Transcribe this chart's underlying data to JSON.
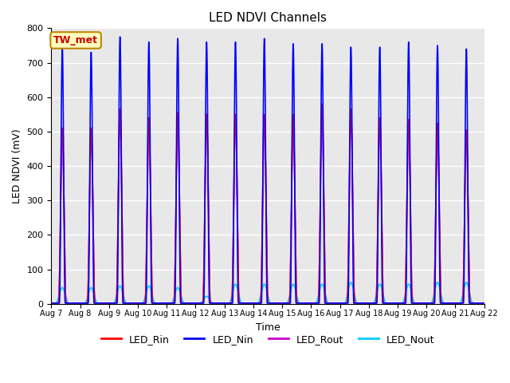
{
  "title": "LED NDVI Channels",
  "xlabel": "Time",
  "ylabel": "LED NDVI (mV)",
  "annotation": "TW_met",
  "ylim": [
    0,
    800
  ],
  "background_color": "#e8e8e8",
  "grid_color": "white",
  "series": {
    "LED_Rin": {
      "color": "#ff0000",
      "linewidth": 1.2
    },
    "LED_Nin": {
      "color": "#0000ff",
      "linewidth": 1.2
    },
    "LED_Rout": {
      "color": "#cc00cc",
      "linewidth": 1.2
    },
    "LED_Nout": {
      "color": "#00ccff",
      "linewidth": 1.2
    }
  },
  "num_cycles": 15,
  "cycle_period": 1.0,
  "baseline": 2,
  "nin_peaks": [
    745,
    730,
    775,
    760,
    770,
    760,
    760,
    770,
    755,
    755,
    745,
    745,
    760,
    750,
    740
  ],
  "rin_peaks": [
    510,
    510,
    565,
    540,
    555,
    550,
    550,
    550,
    550,
    580,
    565,
    540,
    535,
    525,
    505
  ],
  "rout_peaks": [
    500,
    500,
    555,
    530,
    545,
    540,
    540,
    540,
    540,
    550,
    555,
    530,
    525,
    515,
    495
  ],
  "nout_peaks": [
    45,
    45,
    50,
    50,
    45,
    20,
    55,
    55,
    55,
    55,
    60,
    55,
    55,
    60,
    60
  ],
  "tick_labels": [
    "Aug 7",
    "Aug 8",
    "Aug 9",
    "Aug 10",
    "Aug 11",
    "Aug 12",
    "Aug 13",
    "Aug 14",
    "Aug 15",
    "Aug 16",
    "Aug 17",
    "Aug 18",
    "Aug 19",
    "Aug 20",
    "Aug 21",
    "Aug 22"
  ],
  "yticks": [
    0,
    100,
    200,
    300,
    400,
    500,
    600,
    700,
    800
  ]
}
